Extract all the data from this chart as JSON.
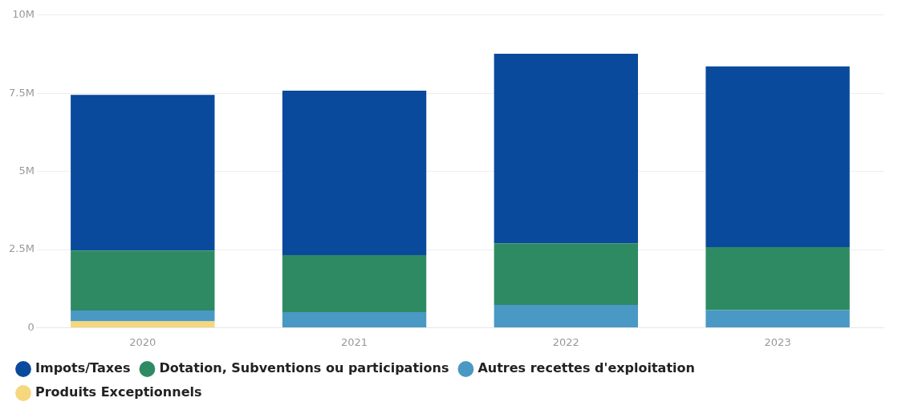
{
  "chart_data": {
    "type": "bar",
    "stacked": true,
    "categories": [
      "2020",
      "2021",
      "2022",
      "2023"
    ],
    "series": [
      {
        "name": "Produits Exceptionnels",
        "color": "#f5d77e",
        "values": [
          200000,
          0,
          0,
          0
        ]
      },
      {
        "name": "Autres recettes d'exploitation",
        "color": "#4a98c4",
        "values": [
          350000,
          500000,
          730000,
          560000
        ]
      },
      {
        "name": "Dotation, Subventions ou participations",
        "color": "#2e8a63",
        "values": [
          1920000,
          1820000,
          1970000,
          2020000
        ]
      },
      {
        "name": "Impots/Taxes",
        "color": "#0a4a9c",
        "values": [
          4980000,
          5260000,
          6060000,
          5780000
        ]
      }
    ],
    "ylim": [
      0,
      10000000
    ],
    "yticks": [
      {
        "value": 0,
        "label": "0"
      },
      {
        "value": 2500000,
        "label": "2.5M"
      },
      {
        "value": 5000000,
        "label": "5M"
      },
      {
        "value": 7500000,
        "label": "7.5M"
      },
      {
        "value": 10000000,
        "label": "10M"
      }
    ],
    "grid": "y",
    "legend": "bottom"
  }
}
